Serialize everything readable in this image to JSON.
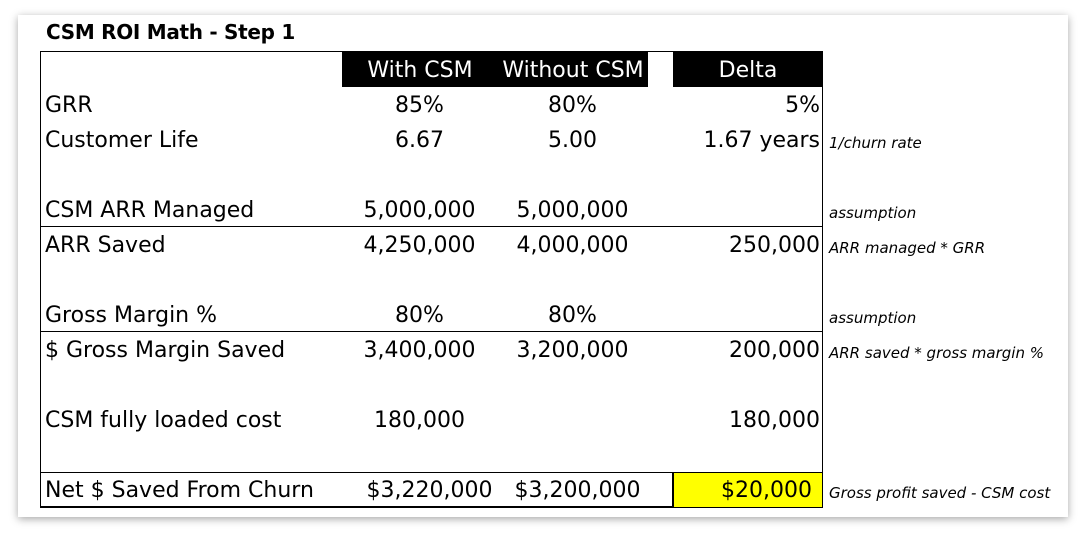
{
  "title": "CSM ROI Math - Step 1",
  "headers": {
    "with_csm": "With CSM",
    "without_csm": "Without CSM",
    "delta": "Delta"
  },
  "rows": {
    "grr": {
      "label": "GRR",
      "with": "85%",
      "without": "80%",
      "delta": "5%",
      "note": ""
    },
    "customer_life": {
      "label": "Customer Life",
      "with": "6.67",
      "without": "5.00",
      "delta": "1.67 years",
      "note": "1/churn rate"
    },
    "arr_managed": {
      "label": "CSM ARR Managed",
      "with": "5,000,000",
      "without": "5,000,000",
      "delta": "",
      "note": "assumption"
    },
    "arr_saved": {
      "label": "ARR Saved",
      "with": "4,250,000",
      "without": "4,000,000",
      "delta": "250,000",
      "note": "ARR managed * GRR"
    },
    "gross_margin_pct": {
      "label": "Gross Margin %",
      "with": "80%",
      "without": "80%",
      "delta": "",
      "note": "assumption"
    },
    "gross_margin_saved": {
      "label": "$ Gross Margin Saved",
      "with": "3,400,000",
      "without": "3,200,000",
      "delta": "200,000",
      "note": "ARR saved * gross margin %"
    },
    "csm_cost": {
      "label": "CSM fully loaded cost",
      "with": "180,000",
      "without": "",
      "delta": "180,000",
      "note": ""
    },
    "net_saved": {
      "label": "Net $ Saved From Churn",
      "with": "$3,220,000",
      "without": "$3,200,000",
      "delta": "$20,000",
      "note": "Gross profit saved - CSM cost"
    }
  },
  "colors": {
    "header_bg": "#000000",
    "header_text": "#ffffff",
    "highlight": "#ffff00"
  }
}
